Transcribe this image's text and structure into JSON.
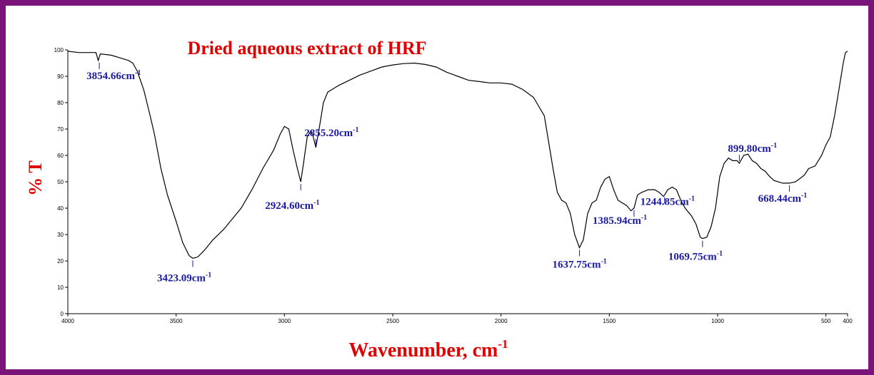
{
  "chart_data": {
    "type": "line",
    "title": "Dried aqueous extract of HRF",
    "xlabel": {
      "text": "Wavenumber, cm",
      "sup": "-1"
    },
    "ylabel": "% T",
    "xlim": [
      4000,
      400
    ],
    "ylim": [
      0,
      100
    ],
    "xticks": [
      4000,
      3500,
      3000,
      2500,
      2000,
      1500,
      1000,
      500,
      400
    ],
    "yticks": [
      0,
      10,
      20,
      30,
      40,
      50,
      60,
      70,
      80,
      90,
      100
    ],
    "color": "#000000",
    "annotation_color": "#1a1aa0",
    "x": [
      4000,
      3950,
      3900,
      3870,
      3860,
      3850,
      3800,
      3760,
      3720,
      3700,
      3680,
      3650,
      3620,
      3600,
      3570,
      3540,
      3500,
      3470,
      3440,
      3423,
      3400,
      3370,
      3330,
      3280,
      3250,
      3200,
      3150,
      3100,
      3050,
      3020,
      3000,
      2980,
      2960,
      2940,
      2924.6,
      2910,
      2895,
      2880,
      2870,
      2855,
      2840,
      2820,
      2800,
      2750,
      2700,
      2650,
      2600,
      2550,
      2500,
      2450,
      2400,
      2350,
      2300,
      2250,
      2200,
      2150,
      2100,
      2050,
      2000,
      1950,
      1900,
      1850,
      1800,
      1780,
      1760,
      1740,
      1720,
      1700,
      1680,
      1660,
      1637.75,
      1620,
      1600,
      1580,
      1560,
      1540,
      1520,
      1500,
      1480,
      1460,
      1440,
      1420,
      1400,
      1385.94,
      1370,
      1350,
      1320,
      1290,
      1270,
      1250,
      1244.85,
      1230,
      1210,
      1190,
      1170,
      1150,
      1120,
      1100,
      1080,
      1069.75,
      1050,
      1030,
      1010,
      990,
      970,
      950,
      930,
      910,
      899.8,
      880,
      860,
      840,
      820,
      800,
      780,
      760,
      740,
      700,
      668.44,
      640,
      600,
      580,
      550,
      520,
      500,
      480,
      460,
      440,
      420,
      410,
      400
    ],
    "values": [
      99.5,
      99,
      99,
      99,
      96,
      98.5,
      98,
      97,
      96,
      95,
      92,
      85,
      75,
      68,
      55,
      45,
      35,
      27,
      22,
      21,
      21.5,
      24,
      28,
      32,
      35,
      40,
      47,
      55,
      62,
      68,
      71,
      70,
      62,
      55,
      50,
      58,
      67,
      69,
      68,
      63,
      70,
      80,
      84,
      86.5,
      88.5,
      90.5,
      92,
      93.5,
      94.3,
      94.8,
      95,
      94.5,
      93.5,
      91.5,
      90,
      88.5,
      88,
      87.5,
      87.5,
      87,
      85,
      82,
      75,
      65,
      55,
      46,
      43,
      42,
      38,
      30,
      25,
      28,
      38,
      42,
      43,
      48,
      51,
      52,
      47,
      43,
      42,
      41,
      39,
      40,
      45,
      46,
      47,
      47,
      46,
      44.5,
      45,
      47,
      48,
      47,
      43,
      40,
      37,
      34,
      29,
      28.5,
      29,
      33,
      40,
      52,
      57,
      59,
      58,
      58,
      57,
      60,
      60.5,
      58,
      57,
      55,
      54,
      52,
      50.5,
      49.5,
      49.5,
      50,
      52.5,
      55,
      56,
      60,
      64,
      67,
      75,
      85,
      95,
      99,
      99.5
    ],
    "annotations": [
      {
        "text": "3854.66cm",
        "sup": "-1",
        "x": 3854.66,
        "y": 96
      },
      {
        "text": "3423.09cm",
        "sup": "-1",
        "x": 3423.09,
        "y": 21
      },
      {
        "text": "2924.60cm",
        "sup": "-1",
        "x": 2924.6,
        "y": 50
      },
      {
        "text": "2855.20cm",
        "sup": "-1",
        "x": 2855.2,
        "y": 63
      },
      {
        "text": "1637.75cm",
        "sup": "-1",
        "x": 1637.75,
        "y": 25
      },
      {
        "text": "1385.94cm",
        "sup": "-1",
        "x": 1385.94,
        "y": 40
      },
      {
        "text": "1244.85cm",
        "sup": "-1",
        "x": 1244.85,
        "y": 45
      },
      {
        "text": "1069.75cm",
        "sup": "-1",
        "x": 1069.75,
        "y": 28.5
      },
      {
        "text": "899.80cm",
        "sup": "-1",
        "x": 899.8,
        "y": 57
      },
      {
        "text": "668.44cm",
        "sup": "-1",
        "x": 668.44,
        "y": 49.5
      }
    ]
  }
}
